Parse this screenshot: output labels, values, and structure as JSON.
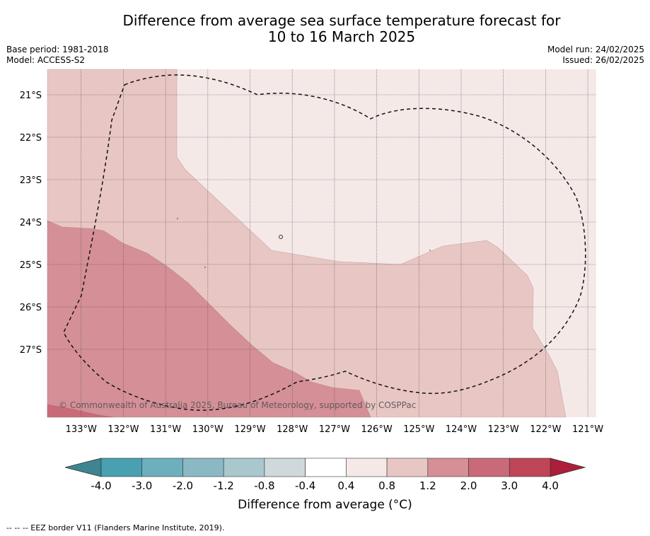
{
  "title": {
    "line1": "Difference from average sea surface temperature forecast for",
    "line2": "10 to 16 March 2025"
  },
  "meta": {
    "base_period": "Base period: 1981-2018",
    "model": "Model: ACCESS-S2",
    "model_run": "Model run: 24/02/2025",
    "issued": "Issued: 26/02/2025"
  },
  "map": {
    "lon_range": [
      -133.8,
      -120.8
    ],
    "lat_range": [
      -28.6,
      -20.4
    ],
    "lat_ticks": [
      {
        "value": -21,
        "label": "21°S"
      },
      {
        "value": -22,
        "label": "22°S"
      },
      {
        "value": -23,
        "label": "23°S"
      },
      {
        "value": -24,
        "label": "24°S"
      },
      {
        "value": -25,
        "label": "25°S"
      },
      {
        "value": -26,
        "label": "26°S"
      },
      {
        "value": -27,
        "label": "27°S"
      }
    ],
    "lon_ticks": [
      {
        "value": -133,
        "label": "133°W"
      },
      {
        "value": -132,
        "label": "132°W"
      },
      {
        "value": -131,
        "label": "131°W"
      },
      {
        "value": -130,
        "label": "130°W"
      },
      {
        "value": -129,
        "label": "129°W"
      },
      {
        "value": -128,
        "label": "128°W"
      },
      {
        "value": -127,
        "label": "127°W"
      },
      {
        "value": -126,
        "label": "126°W"
      },
      {
        "value": -125,
        "label": "125°W"
      },
      {
        "value": -124,
        "label": "124°W"
      },
      {
        "value": -123,
        "label": "123°W"
      },
      {
        "value": -122,
        "label": "122°W"
      },
      {
        "value": -121,
        "label": "121°W"
      }
    ],
    "copyright": "© Commonwealth of Australia 2025, Bureau of Meteorology, supported by COSPPac",
    "zones": {
      "z04_08": "#f5e9e8",
      "z08_12": "#e8c6c4",
      "z12_20": "#d58f97",
      "z20_30": "#c96a78"
    }
  },
  "colorbar": {
    "title": "Difference from average (°C)",
    "tick_labels": [
      "-4.0",
      "-3.0",
      "-2.0",
      "-1.2",
      "-0.8",
      "-0.4",
      "0.4",
      "0.8",
      "1.2",
      "2.0",
      "3.0",
      "4.0"
    ],
    "under_color": "#3d8591",
    "over_color": "#ad1e3b",
    "colors": [
      "#48a0b0",
      "#6dafbd",
      "#8ab9c4",
      "#a9c8cd",
      "#cfd9db",
      "#ffffff",
      "#f5e9e8",
      "#e8c6c4",
      "#d58f97",
      "#c96a78",
      "#be4656"
    ]
  },
  "footer": "--  --  -- EEZ border V11 (Flanders Marine Institute, 2019)."
}
